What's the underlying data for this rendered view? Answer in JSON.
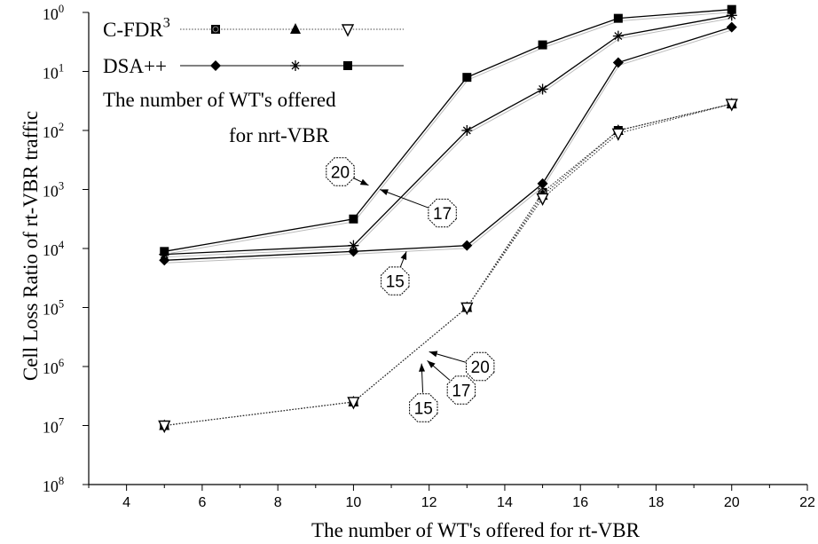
{
  "chart_data": {
    "type": "line",
    "xlabel": "The number of WT's offered for rt-VBR",
    "ylabel": "Cell Loss Ratio of rt-VBR traffic",
    "xlim": [
      3,
      22
    ],
    "x_ticks": [
      4,
      6,
      8,
      10,
      12,
      14,
      16,
      18,
      20,
      22
    ],
    "y_ticks": [
      {
        "exp": -8,
        "label": "10",
        "sup": "8"
      },
      {
        "exp": -7,
        "label": "10",
        "sup": "7"
      },
      {
        "exp": -6,
        "label": "10",
        "sup": "6"
      },
      {
        "exp": -5,
        "label": "10",
        "sup": "5"
      },
      {
        "exp": -4,
        "label": "10",
        "sup": "4"
      },
      {
        "exp": -3,
        "label": "10",
        "sup": "3"
      },
      {
        "exp": -2,
        "label": "10",
        "sup": "2"
      },
      {
        "exp": -1,
        "label": "10",
        "sup": "1"
      },
      {
        "exp": 0,
        "label": "10",
        "sup": "0"
      }
    ],
    "ylim_exp": [
      -8,
      0
    ],
    "y_scale": "log",
    "grid": false,
    "legend": {
      "position": "top-left",
      "rows": [
        {
          "label": "C-FDR",
          "sup": "3",
          "markers": [
            "square-circle",
            "triangle",
            "inverted-triangle"
          ],
          "style": "dotted"
        },
        {
          "label": "DSA++",
          "sup": "",
          "markers": [
            "diamond",
            "star",
            "square"
          ],
          "style": "solid"
        }
      ],
      "caption_lines": [
        "The number of WT's offered",
        "for nrt-VBR"
      ]
    },
    "series": [
      {
        "group": "C-FDR3",
        "nrt": "15",
        "marker": "square-circle",
        "style": "dotted",
        "x": [
          5,
          10,
          13,
          15,
          17,
          20
        ],
        "y_exp": [
          -7.0,
          -6.6,
          -5.0,
          -3.05,
          -2.0,
          -1.55
        ]
      },
      {
        "group": "C-FDR3",
        "nrt": "17",
        "marker": "triangle",
        "style": "dotted",
        "x": [
          5,
          10,
          13,
          15,
          17,
          20
        ],
        "y_exp": [
          -7.0,
          -6.6,
          -5.0,
          -3.1,
          -2.0,
          -1.55
        ]
      },
      {
        "group": "C-FDR3",
        "nrt": "20",
        "marker": "inverted-triangle",
        "style": "dotted",
        "x": [
          5,
          10,
          13,
          15,
          17,
          20
        ],
        "y_exp": [
          -7.0,
          -6.6,
          -5.0,
          -3.15,
          -2.05,
          -1.55
        ]
      },
      {
        "group": "DSA++",
        "nrt": "15",
        "marker": "diamond",
        "style": "solid",
        "x": [
          5,
          10,
          13,
          15,
          17,
          20
        ],
        "y_exp": [
          -4.2,
          -4.05,
          -3.95,
          -2.9,
          -0.85,
          -0.25
        ]
      },
      {
        "group": "DSA++",
        "nrt": "17",
        "marker": "star",
        "style": "solid",
        "x": [
          5,
          10,
          13,
          15,
          17,
          20
        ],
        "y_exp": [
          -4.1,
          -3.95,
          -2.0,
          -1.3,
          -0.4,
          -0.05
        ]
      },
      {
        "group": "DSA++",
        "nrt": "20",
        "marker": "square",
        "style": "solid",
        "x": [
          5,
          10,
          13,
          15,
          17,
          20
        ],
        "y_exp": [
          -4.05,
          -3.5,
          -1.1,
          -0.55,
          -0.1,
          0.05
        ]
      }
    ],
    "annotations": [
      {
        "text": "20",
        "shape": "octagon",
        "label_at": [
          9.65,
          -2.7
        ],
        "arrow_to": [
          10.4,
          -2.93
        ]
      },
      {
        "text": "17",
        "shape": "octagon",
        "label_at": [
          12.35,
          -3.4
        ],
        "arrow_to": [
          10.7,
          -3.0
        ]
      },
      {
        "text": "15",
        "shape": "octagon",
        "label_at": [
          11.1,
          -4.55
        ],
        "arrow_to": [
          11.4,
          -4.05
        ]
      },
      {
        "text": "20",
        "shape": "octagon",
        "label_at": [
          13.35,
          -6.0
        ],
        "arrow_to": [
          12.0,
          -5.75
        ]
      },
      {
        "text": "17",
        "shape": "octagon",
        "label_at": [
          12.85,
          -6.4
        ],
        "arrow_to": [
          11.95,
          -5.9
        ]
      },
      {
        "text": "15",
        "shape": "octagon",
        "label_at": [
          11.85,
          -6.7
        ],
        "arrow_to": [
          11.8,
          -5.95
        ]
      }
    ]
  }
}
